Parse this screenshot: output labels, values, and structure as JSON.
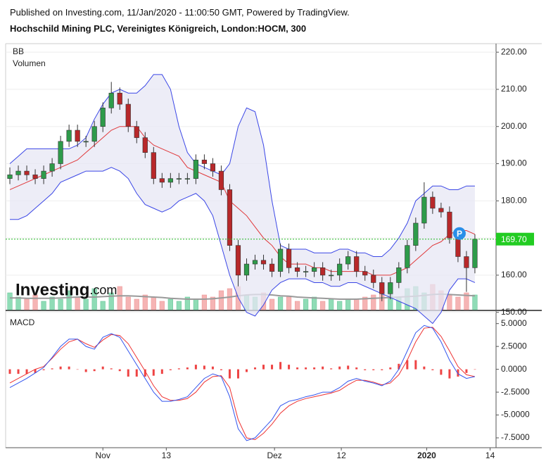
{
  "header": {
    "line1": "Published on Investing.com, 11/Jan/2020 - 11:00:50 GMT, Powered by TradingView.",
    "line2": "Hochschild Mining PLC, Vereinigtes Königreich, London:HOCM, 300"
  },
  "chart_data": [
    {
      "type": "candlestick",
      "labels": [
        "BB",
        "Volumen"
      ],
      "logo": "Investing",
      "logo_suffix": ".com",
      "badge": "P",
      "xlim": [
        -0.5,
        57.5
      ],
      "ylim": [
        150.7,
        222.3
      ],
      "yticks": [
        {
          "value": 220,
          "label": "220.00"
        },
        {
          "value": 210,
          "label": "210.00"
        },
        {
          "value": 200,
          "label": "200.00"
        },
        {
          "value": 190,
          "label": "190.00"
        },
        {
          "value": 180,
          "label": "180.00"
        },
        {
          "value": 170,
          "label": "170.00"
        },
        {
          "value": 160,
          "label": "160.00"
        },
        {
          "value": 150,
          "label": "150.00"
        }
      ],
      "last_price": {
        "value": 169.7,
        "label": "169.70"
      },
      "up_color": "#2e9b4a",
      "down_color": "#b8282a",
      "band_color": "#3a46e6",
      "band_fill": "#e7e7f4",
      "mid_color": "#e0383a",
      "open": [
        186,
        187,
        188,
        187,
        186,
        188,
        190,
        196,
        199,
        196,
        196,
        200,
        205,
        209,
        206,
        200,
        197,
        193,
        186,
        185,
        186,
        186,
        186,
        191,
        190,
        188,
        183,
        168,
        160,
        163,
        164,
        163,
        161,
        167,
        162,
        161,
        161,
        162,
        160,
        160,
        163,
        165,
        161,
        160,
        158,
        155,
        158,
        162,
        168,
        174,
        181,
        178,
        177,
        170,
        165,
        162
      ],
      "high": [
        189,
        189.5,
        189.5,
        188.5,
        189.5,
        191.5,
        197.5,
        200.5,
        200.5,
        197.5,
        201.5,
        206.5,
        212,
        210.5,
        207.5,
        201.5,
        198.5,
        194.5,
        187.5,
        187.5,
        187.5,
        187.5,
        192.5,
        192.5,
        191.5,
        189.5,
        184.5,
        169.5,
        164.5,
        165.5,
        165.5,
        164.5,
        168.5,
        168.5,
        163.5,
        162.5,
        163.5,
        163.5,
        161.5,
        164.5,
        166.5,
        166.5,
        162.5,
        161.5,
        159.5,
        159.5,
        163.5,
        169.5,
        175.5,
        185,
        182.5,
        179.5,
        178.5,
        171.5,
        166.5,
        171
      ],
      "low": [
        184.5,
        185.5,
        185.5,
        184.5,
        184.5,
        186.5,
        188.5,
        194.5,
        194.5,
        194.5,
        194.5,
        198.5,
        203.5,
        204.5,
        198.5,
        195.5,
        191.5,
        184.5,
        183.5,
        183.5,
        184.5,
        184.5,
        184.5,
        188.5,
        186.5,
        181.5,
        166.5,
        157,
        158.5,
        161.5,
        161.5,
        159.5,
        159.5,
        160.5,
        159.5,
        159.5,
        159.5,
        158.5,
        158.5,
        158.5,
        161.5,
        159.5,
        158.5,
        156.5,
        153,
        153.5,
        156.5,
        160.5,
        166.5,
        172.5,
        176.5,
        175.5,
        168.5,
        163.5,
        155.5,
        160.5
      ],
      "close": [
        187,
        188,
        187,
        186,
        188,
        190,
        196,
        199,
        196,
        196,
        200,
        205,
        209,
        206,
        200,
        197,
        193,
        186,
        185,
        186,
        186,
        186,
        191,
        190,
        188,
        183,
        168,
        160,
        163,
        164,
        163,
        161,
        167,
        162,
        161,
        161,
        162,
        160,
        160,
        163,
        165,
        161,
        160,
        158,
        155,
        158,
        162,
        168,
        174,
        181,
        178,
        177,
        170,
        165,
        162,
        169.7
      ],
      "bb_upper": [
        190,
        192,
        194,
        194,
        194,
        194,
        194,
        194,
        195,
        197,
        202,
        206,
        209,
        210,
        209,
        209,
        211,
        214,
        214,
        210,
        200,
        193,
        190,
        189,
        188,
        187,
        190,
        200,
        205,
        204,
        195,
        180,
        168,
        167,
        167,
        167,
        166,
        166,
        166,
        167,
        167,
        166,
        166,
        165,
        165,
        167,
        170,
        174,
        180,
        182,
        184,
        184,
        183,
        183,
        184,
        184
      ],
      "bb_middle": [
        183,
        184,
        185,
        186,
        187,
        188,
        189,
        190,
        191,
        193,
        195,
        197,
        199,
        200,
        200,
        200,
        197,
        195,
        194,
        193,
        192,
        189,
        188,
        187,
        186,
        185,
        180,
        178,
        176,
        173,
        170,
        168,
        165,
        163,
        163,
        163,
        162,
        162,
        161,
        161,
        161,
        161,
        161,
        160,
        160,
        160,
        161,
        162,
        164,
        166,
        168,
        169,
        171,
        172,
        172,
        171
      ],
      "bb_lower": [
        175,
        175,
        176,
        178,
        180,
        182,
        185,
        186,
        187,
        188,
        188,
        188,
        189,
        188,
        186,
        182,
        179,
        178,
        177,
        178,
        180,
        181,
        182,
        180,
        176,
        168,
        160,
        154,
        150,
        149,
        152,
        156,
        158,
        159,
        159,
        159,
        158,
        158,
        157,
        157,
        158,
        158,
        157,
        156,
        155,
        154,
        153,
        152,
        151,
        149,
        147,
        150,
        156,
        159,
        159,
        158
      ],
      "volume_lim": [
        0,
        100
      ],
      "volume_up": "#8fdcb6",
      "volume_down": "#f5b4b4",
      "volume_ma_color": "#9a9a9a",
      "volume": [
        40,
        30,
        25,
        35,
        20,
        30,
        25,
        45,
        30,
        25,
        50,
        20,
        40,
        55,
        30,
        25,
        35,
        30,
        20,
        25,
        20,
        30,
        25,
        35,
        30,
        45,
        50,
        55,
        35,
        30,
        40,
        25,
        30,
        30,
        20,
        25,
        30,
        20,
        25,
        20,
        25,
        25,
        30,
        35,
        45,
        40,
        30,
        50,
        55,
        40,
        60,
        45,
        35,
        30,
        40,
        35
      ],
      "volume_ma": [
        28,
        28,
        27,
        27,
        27,
        27,
        28,
        29,
        30,
        30,
        30,
        31,
        32,
        33,
        33,
        32,
        31,
        30,
        29,
        27,
        26,
        25,
        25,
        25,
        26,
        28,
        30,
        33,
        35,
        36,
        36,
        35,
        33,
        32,
        30,
        29,
        28,
        27,
        26,
        25,
        25,
        25,
        26,
        27,
        28,
        29,
        30,
        31,
        32,
        34,
        36,
        37,
        36,
        35,
        34,
        33
      ]
    },
    {
      "type": "macd",
      "title": "MACD",
      "xlim": [
        -0.5,
        57.5
      ],
      "ylim": [
        -8.5,
        5.9
      ],
      "yticks": [
        {
          "value": 5,
          "label": "5.0000"
        },
        {
          "value": 2.5,
          "label": "2.5000"
        },
        {
          "value": 0,
          "label": "0.0000"
        },
        {
          "value": -2.5,
          "label": "-2.5000"
        },
        {
          "value": -5,
          "label": "-5.0000"
        },
        {
          "value": -7.5,
          "label": "-7.5000"
        }
      ],
      "xticks": [
        {
          "value": 11,
          "label": "Nov"
        },
        {
          "value": 18.5,
          "label": "13"
        },
        {
          "value": 31.3,
          "label": "Dez"
        },
        {
          "value": 39.2,
          "label": "12"
        },
        {
          "value": 49.3,
          "label": "2020"
        },
        {
          "value": 56.8,
          "label": "14"
        }
      ],
      "macd_color": "#3355ee",
      "signal_color": "#ee3333",
      "hist_color": "#ee4444",
      "macd": [
        -2,
        -1.5,
        -1,
        -0.4,
        0.2,
        1.3,
        2.5,
        3.3,
        3.3,
        2.5,
        2.2,
        3.5,
        3.9,
        3.5,
        2,
        0.5,
        -1,
        -2.5,
        -3.5,
        -3.5,
        -3.3,
        -3,
        -2,
        -1,
        -0.5,
        -0.8,
        -3,
        -6.5,
        -7.8,
        -7.5,
        -6.5,
        -5.5,
        -4,
        -3.5,
        -3.3,
        -3,
        -2.8,
        -2.5,
        -2.5,
        -2,
        -1.3,
        -1,
        -1.3,
        -1.5,
        -1.8,
        -1.3,
        0,
        2,
        4,
        4.8,
        4.5,
        3,
        1,
        -0.5,
        -1,
        -0.8
      ],
      "signal": [
        -1.5,
        -1,
        -0.5,
        0,
        0.3,
        1.2,
        2.2,
        3,
        3.3,
        2.8,
        2.4,
        3.2,
        3.8,
        3.7,
        2.8,
        1.3,
        -0.2,
        -1.8,
        -3,
        -3.4,
        -3.4,
        -3.2,
        -2.5,
        -1.4,
        -0.8,
        -0.7,
        -2,
        -5.5,
        -7.5,
        -7.7,
        -7,
        -6,
        -4.8,
        -4,
        -3.5,
        -3.2,
        -3,
        -2.8,
        -2.6,
        -2.3,
        -1.7,
        -1.2,
        -1.2,
        -1.4,
        -1.7,
        -1.5,
        -0.6,
        1,
        3,
        4.5,
        4.6,
        3.6,
        2,
        0.3,
        -0.6,
        -0.8
      ],
      "histogram": [
        -0.5,
        -0.5,
        -0.5,
        -0.4,
        -0.1,
        0.1,
        0.3,
        0.3,
        0,
        -0.3,
        -0.2,
        0.3,
        0.1,
        -0.2,
        -0.8,
        -0.8,
        -0.8,
        -0.7,
        -0.5,
        -0.1,
        0.1,
        0.2,
        0.5,
        0.4,
        0.3,
        -0.1,
        -1,
        -1,
        -0.3,
        0.2,
        0.5,
        0.5,
        0.8,
        0.5,
        0.2,
        0.2,
        0.2,
        0.3,
        0.1,
        0.3,
        0.4,
        0.2,
        -0.1,
        -0.1,
        -0.1,
        0.2,
        0.6,
        1,
        1,
        0.3,
        -0.1,
        -0.6,
        -1,
        -0.8,
        -0.4,
        0
      ]
    }
  ]
}
